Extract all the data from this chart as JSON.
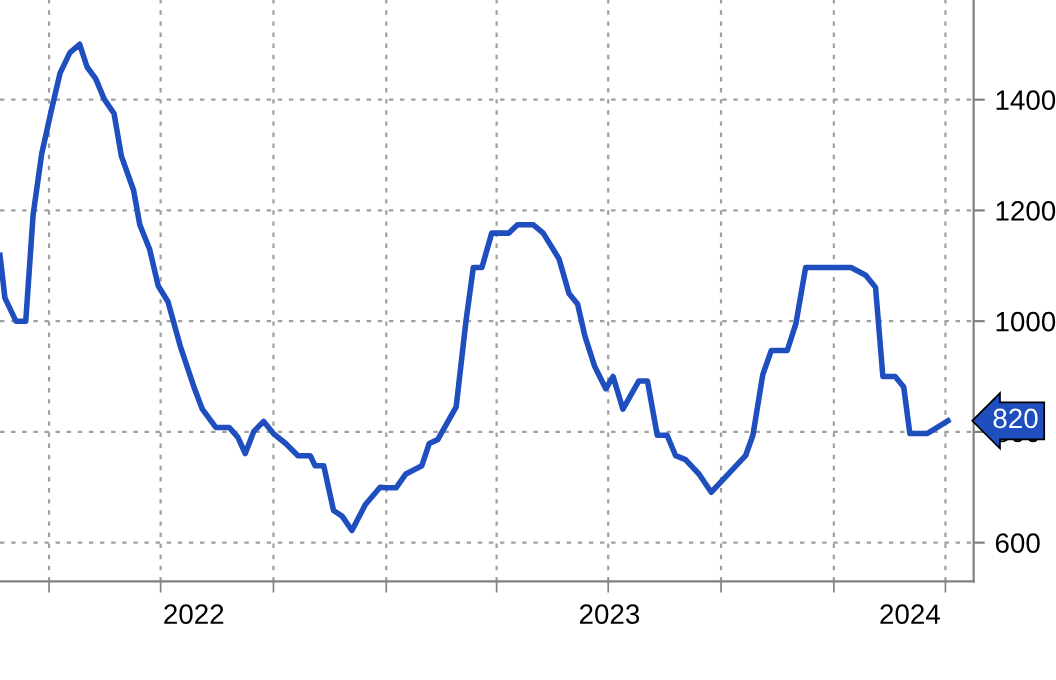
{
  "chart_data": {
    "type": "line",
    "x": [
      "2022-02-20",
      "2022-02-24",
      "2022-03-05",
      "2022-03-13",
      "2022-03-19",
      "2022-03-26",
      "2022-04-03",
      "2022-04-10",
      "2022-04-18",
      "2022-04-26",
      "2022-05-02",
      "2022-05-09",
      "2022-05-16",
      "2022-05-24",
      "2022-05-30",
      "2022-06-09",
      "2022-06-14",
      "2022-06-22",
      "2022-06-29",
      "2022-07-07",
      "2022-07-17",
      "2022-07-28",
      "2022-08-04",
      "2022-08-15",
      "2022-08-26",
      "2022-09-02",
      "2022-09-08",
      "2022-09-15",
      "2022-09-23",
      "2022-10-01",
      "2022-10-11",
      "2022-10-21",
      "2022-10-31",
      "2022-11-04",
      "2022-11-11",
      "2022-11-19",
      "2022-11-26",
      "2022-12-04",
      "2022-12-15",
      "2022-12-27",
      "2023-01-01",
      "2023-01-09",
      "2023-01-17",
      "2023-01-30",
      "2023-02-05",
      "2023-02-12",
      "2023-02-27",
      "2023-03-07",
      "2023-03-13",
      "2023-03-20",
      "2023-03-28",
      "2023-04-11",
      "2023-04-18",
      "2023-05-01",
      "2023-05-09",
      "2023-05-22",
      "2023-05-30",
      "2023-06-06",
      "2023-06-12",
      "2023-06-20",
      "2023-06-29",
      "2023-07-05",
      "2023-07-13",
      "2023-07-26",
      "2023-08-02",
      "2023-08-10",
      "2023-08-18",
      "2023-08-25",
      "2023-09-02",
      "2023-09-13",
      "2023-09-23",
      "2023-10-04",
      "2023-10-21",
      "2023-10-27",
      "2023-11-04",
      "2023-11-11",
      "2023-11-24",
      "2023-12-01",
      "2023-12-09",
      "2024-01-15",
      "2024-01-27",
      "2024-02-04",
      "2024-02-10",
      "2024-02-20",
      "2024-02-27",
      "2024-03-03",
      "2024-03-17",
      "2024-04-03"
    ],
    "series": [
      {
        "color": "#1f4fbf",
        "values": [
          1119,
          1042,
          1000,
          1000,
          1192,
          1302,
          1382,
          1448,
          1485,
          1500,
          1459,
          1438,
          1401,
          1375,
          1298,
          1236,
          1174,
          1130,
          1064,
          1035,
          955,
          882,
          841,
          808,
          808,
          790,
          761,
          801,
          819,
          797,
          779,
          757,
          757,
          739,
          739,
          658,
          648,
          622,
          669,
          700,
          699,
          699,
          724,
          739,
          779,
          786,
          845,
          1000,
          1097,
          1097,
          1159,
          1159,
          1174,
          1174,
          1159,
          1112,
          1050,
          1031,
          973,
          918,
          878,
          900,
          841,
          892,
          892,
          794,
          794,
          757,
          750,
          724,
          691,
          717,
          757,
          794,
          903,
          947,
          947,
          995,
          1097,
          1097,
          1083,
          1061,
          900,
          900,
          881,
          797,
          797,
          820
        ]
      }
    ],
    "xlim": [
      "2022-02-20",
      "2024-04-24"
    ],
    "xticks": [
      {
        "value": "2022-04-01",
        "label": null
      },
      {
        "value": "2022-07-01",
        "label": null
      },
      {
        "value": "2022-10-01",
        "label": null
      },
      {
        "value": "2023-01-01",
        "label": null
      },
      {
        "value": "2023-04-01",
        "label": null
      },
      {
        "value": "2023-07-01",
        "label": null
      },
      {
        "value": "2023-10-01",
        "label": null
      },
      {
        "value": "2024-01-01",
        "label": null
      },
      {
        "value": "2024-04-01",
        "label": null
      },
      {
        "value": "2022-07-28",
        "label": "2022"
      },
      {
        "value": "2023-07-02",
        "label": "2023"
      },
      {
        "value": "2024-03-03",
        "label": "2024"
      }
    ],
    "ylim": [
      530,
      1580
    ],
    "yticks": [
      600,
      800,
      1000,
      1200,
      1400
    ],
    "grid": true,
    "marker": "none",
    "line_style": "solid",
    "annotations": [
      {
        "text": "820",
        "x": "2024-04-03",
        "y": 820
      }
    ]
  }
}
